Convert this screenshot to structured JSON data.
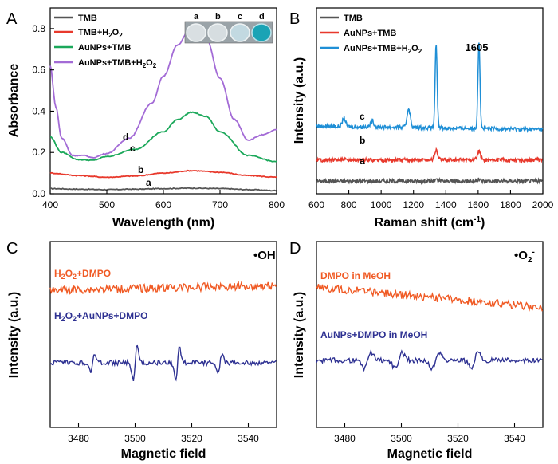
{
  "figure": {
    "panels": [
      "A",
      "B",
      "C",
      "D"
    ]
  },
  "chart_data": [
    {
      "panel": "A",
      "type": "line",
      "title": "",
      "xlabel": "Wavelength (nm)",
      "ylabel": "Absorbance",
      "xlim": [
        400,
        800
      ],
      "ylim": [
        0.0,
        0.9
      ],
      "xticks": [
        400,
        500,
        600,
        700,
        800
      ],
      "yticks": [
        0.0,
        0.2,
        0.4,
        0.6,
        0.8
      ],
      "xtick_labels": [
        "400",
        "500",
        "600",
        "700",
        "800"
      ],
      "ytick_labels": [
        "0.0",
        "0.2",
        "0.4",
        "0.6",
        "0.8"
      ],
      "legend": [
        {
          "label": "TMB",
          "sub": "",
          "color": "#555555"
        },
        {
          "label": "TMB+H",
          "sub": "2",
          "after": "O",
          "sub2": "2",
          "color": "#e8392c"
        },
        {
          "label": "AuNPs+TMB",
          "sub": "",
          "color": "#1ba85a"
        },
        {
          "label": "AuNPs+TMB+H",
          "sub": "2",
          "after": "O",
          "sub2": "2",
          "color": "#a36bd6"
        }
      ],
      "inset_labels": [
        "a",
        "b",
        "c",
        "d"
      ],
      "curve_labels": [
        "a",
        "b",
        "c",
        "d"
      ],
      "series": [
        {
          "name": "TMB",
          "color": "#555555",
          "x": [
            400,
            450,
            500,
            550,
            600,
            650,
            700,
            750,
            800
          ],
          "y": [
            0.025,
            0.022,
            0.02,
            0.022,
            0.025,
            0.027,
            0.025,
            0.02,
            0.015
          ]
        },
        {
          "name": "TMB+H2O2",
          "color": "#e8392c",
          "x": [
            400,
            450,
            500,
            550,
            600,
            650,
            700,
            750,
            800
          ],
          "y": [
            0.1,
            0.088,
            0.08,
            0.086,
            0.1,
            0.112,
            0.104,
            0.088,
            0.08
          ]
        },
        {
          "name": "AuNPs+TMB",
          "color": "#1ba85a",
          "x": [
            400,
            420,
            450,
            475,
            500,
            550,
            600,
            625,
            650,
            675,
            700,
            750,
            800
          ],
          "y": [
            0.275,
            0.2,
            0.165,
            0.162,
            0.18,
            0.215,
            0.3,
            0.36,
            0.395,
            0.375,
            0.3,
            0.185,
            0.155
          ]
        },
        {
          "name": "AuNPs+TMB+H2O2",
          "color": "#a36bd6",
          "x": [
            400,
            410,
            420,
            440,
            460,
            475,
            500,
            540,
            580,
            600,
            625,
            650,
            675,
            700,
            725,
            750,
            775,
            800
          ],
          "y": [
            0.62,
            0.42,
            0.27,
            0.185,
            0.185,
            0.175,
            0.195,
            0.27,
            0.44,
            0.57,
            0.72,
            0.815,
            0.76,
            0.56,
            0.36,
            0.26,
            0.285,
            0.31
          ]
        }
      ]
    },
    {
      "panel": "B",
      "type": "line",
      "title": "",
      "xlabel": "Raman shift (cm",
      "xlabel_sup": "-1",
      "xlabel_end": ")",
      "ylabel": "Intensity (a.u.)",
      "xlim": [
        600,
        2000
      ],
      "xticks": [
        600,
        800,
        1000,
        1200,
        1400,
        1600,
        1800,
        2000
      ],
      "xtick_labels": [
        "600",
        "800",
        "1000",
        "1200",
        "1400",
        "1600",
        "1800",
        "2000"
      ],
      "peak_annotation": "1605",
      "curve_labels": [
        "a",
        "b",
        "c"
      ],
      "legend": [
        {
          "label": "TMB",
          "color": "#555555"
        },
        {
          "label": "AuNPs+TMB",
          "color": "#e8392c"
        },
        {
          "label": "AuNPs+TMB+H",
          "sub": "2",
          "after": "O",
          "sub2": "2",
          "color": "#1f8fd6"
        }
      ],
      "series": [
        {
          "name": "TMB",
          "color": "#555555",
          "baseline": 0.0,
          "peaks": [
            [
              1340,
              0.05
            ],
            [
              1605,
              0.07
            ]
          ]
        },
        {
          "name": "AuNPs+TMB",
          "color": "#e8392c",
          "baseline": 1.0,
          "peaks": [
            [
              1340,
              0.45
            ],
            [
              1605,
              0.4
            ]
          ]
        },
        {
          "name": "AuNPs+TMB+H2O2",
          "color": "#1f8fd6",
          "baseline": 2.6,
          "peaks": [
            [
              770,
              0.4
            ],
            [
              945,
              0.3
            ],
            [
              1170,
              0.9
            ],
            [
              1340,
              3.9
            ],
            [
              1605,
              4.1
            ]
          ]
        }
      ]
    },
    {
      "panel": "C",
      "type": "line",
      "title": "•OH",
      "xlabel": "Magnetic field",
      "ylabel": "Intensity (a.u.)",
      "xlim": [
        3470,
        3550
      ],
      "xticks": [
        3480,
        3500,
        3520,
        3540
      ],
      "xtick_labels": [
        "3480",
        "3500",
        "3520",
        "3540"
      ],
      "series": [
        {
          "name": "H2O2+DMPO",
          "label": "H",
          "sub": "2",
          "after": "O",
          "sub2": "2",
          "after2": "+DMPO",
          "color": "#f05a24",
          "level": 1.0
        },
        {
          "name": "H2O2+AuNPs+DMPO",
          "label": "H",
          "sub": "2",
          "after": "O",
          "sub2": "2",
          "after2": "+AuNPs+DMPO",
          "color": "#2e3192",
          "level": 0.0,
          "spikes": [
            3485,
            3500,
            3515,
            3530
          ]
        }
      ]
    },
    {
      "panel": "D",
      "type": "line",
      "title": "•O2-",
      "xlabel": "Magnetic field",
      "ylabel": "Intensity (a.u.)",
      "xlim": [
        3470,
        3550
      ],
      "xticks": [
        3480,
        3500,
        3520,
        3540
      ],
      "xtick_labels": [
        "3480",
        "3500",
        "3520",
        "3540"
      ],
      "series": [
        {
          "name": "DMPO in MeOH",
          "label": "DMPO in MeOH",
          "color": "#f05a24",
          "level": 1.0
        },
        {
          "name": "AuNPs+DMPO in MeOH",
          "label": "AuNPs+DMPO in MeOH",
          "color": "#2e3192",
          "level": 0.0,
          "spikes": [
            3488,
            3499,
            3512,
            3526
          ]
        }
      ]
    }
  ]
}
